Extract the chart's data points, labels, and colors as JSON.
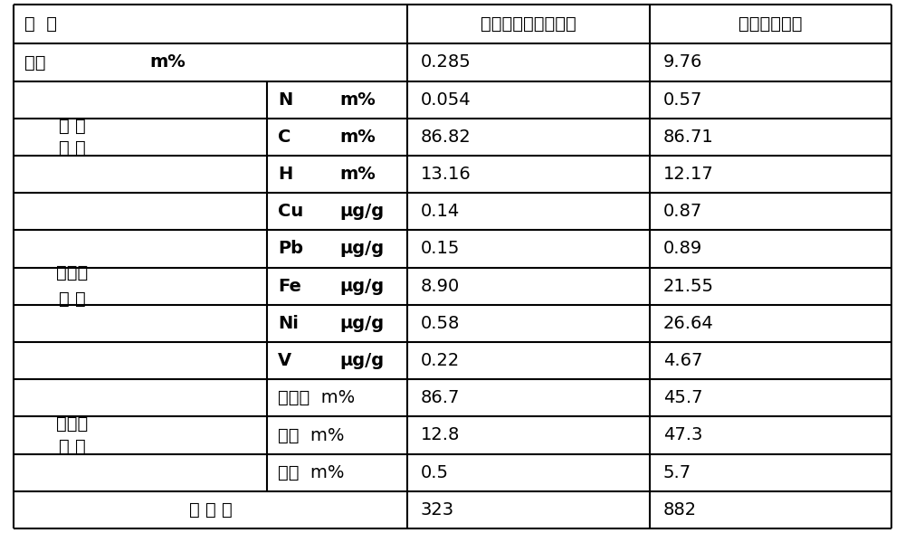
{
  "col2_header": "新疆减压宽馏份蜡油",
  "col3_header": "新疆减压渣油",
  "header_col0": "项  目",
  "cantan_row": {
    "label": "残炭",
    "unit": "m%",
    "val1": "0.285",
    "val2": "9.76"
  },
  "elem_group": "元 素\n分 析",
  "elem_rows": [
    {
      "label": "N",
      "unit": "m%",
      "val1": "0.054",
      "val2": "0.57"
    },
    {
      "label": "C",
      "unit": "m%",
      "val1": "86.82",
      "val2": "86.71"
    },
    {
      "label": "H",
      "unit": "m%",
      "val1": "13.16",
      "val2": "12.17"
    }
  ],
  "heavy_group": "重金属\n分 析",
  "heavy_rows": [
    {
      "label": "Cu",
      "unit": "μg/g",
      "val1": "0.14",
      "val2": "0.87"
    },
    {
      "label": "Pb",
      "unit": "μg/g",
      "val1": "0.15",
      "val2": "0.89"
    },
    {
      "label": "Fe",
      "unit": "μg/g",
      "val1": "8.90",
      "val2": "21.55"
    },
    {
      "label": "Ni",
      "unit": "μg/g",
      "val1": "0.58",
      "val2": "26.64"
    },
    {
      "label": "V",
      "unit": "μg/g",
      "val1": "0.22",
      "val2": "4.67"
    }
  ],
  "group3_group": "族组成\n分 析",
  "group3_rows": [
    {
      "label": "饱和烃",
      "unit": "m%",
      "val1": "86.7",
      "val2": "45.7"
    },
    {
      "label": "芳烃",
      "unit": "m%",
      "val1": "12.8",
      "val2": "47.3"
    },
    {
      "label": "胶质",
      "unit": "m%",
      "val1": "0.5",
      "val2": "5.7"
    }
  ],
  "mol_weight": {
    "label": "分 子 量",
    "val1": "323",
    "val2": "882"
  },
  "bg_color": "#ffffff",
  "border_color": "#000000",
  "text_color": "#000000",
  "font_size": 14,
  "sub_font_size": 14
}
